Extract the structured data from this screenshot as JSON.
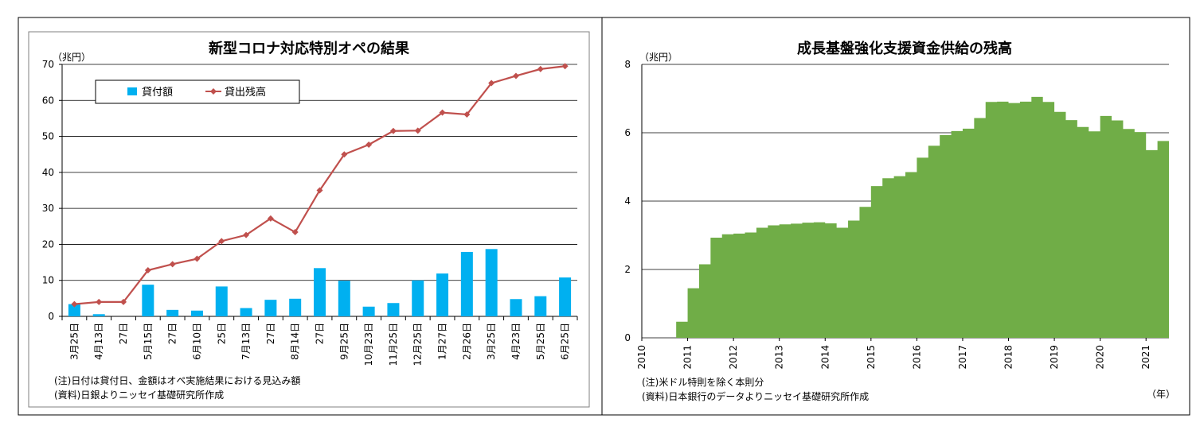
{
  "left": {
    "title": "新型コロナ対応特別オペの結果",
    "unit": "（兆円）",
    "note": "(注)日付は貸付日、金額はオペ実施結果における見込み額",
    "source": "(資料)日銀よりニッセイ基礎研究所作成"
  },
  "right": {
    "title": "成長基盤強化支援資金供給の残高",
    "unit": "（兆円）",
    "year_unit": "（年）",
    "note": "(注)米ドル特則を除く本則分",
    "source": "(資料)日本銀行のデータよりニッセイ基礎研究所作成"
  },
  "chart_data": [
    {
      "type": "bar+line",
      "title": "新型コロナ対応特別オペの結果",
      "ylabel": "（兆円）",
      "ylim": [
        0,
        70
      ],
      "yticks": [
        0,
        10,
        20,
        30,
        40,
        50,
        60,
        70
      ],
      "grid": true,
      "legend_position": "top-left",
      "categories": [
        "3月25日",
        "4月13日",
        "27日",
        "5月15日",
        "27日",
        "6月10日",
        "25日",
        "7月13日",
        "27日",
        "8月14日",
        "27日",
        "9月25日",
        "10月23日",
        "11月25日",
        "12月25日",
        "1月27日",
        "2月26日",
        "3月25日",
        "4月23日",
        "5月25日",
        "6月25日"
      ],
      "series": [
        {
          "name": "貸付額",
          "type": "bar",
          "color": "#00B0F0",
          "values": [
            3.4,
            0.6,
            0,
            8.8,
            1.8,
            1.6,
            8.3,
            2.3,
            4.6,
            4.9,
            13.4,
            9.9,
            2.7,
            3.7,
            10,
            11.9,
            17.9,
            18.7,
            4.8,
            5.6,
            10.8
          ]
        },
        {
          "name": "貸出残高",
          "type": "line",
          "color": "#C0504D",
          "values": [
            3.4,
            4.0,
            4.0,
            12.8,
            14.5,
            16.0,
            20.9,
            22.6,
            27.2,
            23.4,
            35.0,
            45.0,
            47.7,
            51.5,
            51.6,
            56.6,
            56.1,
            64.8,
            66.8,
            68.7,
            69.5
          ]
        }
      ]
    },
    {
      "type": "area",
      "title": "成長基盤強化支援資金供給の残高",
      "ylabel": "（兆円）",
      "xlabel": "（年）",
      "ylim": [
        0,
        8
      ],
      "yticks": [
        0,
        2,
        4,
        6,
        8
      ],
      "xticks": [
        "2010",
        "2011",
        "2012",
        "2013",
        "2014",
        "2015",
        "2016",
        "2017",
        "2018",
        "2019",
        "2020",
        "2021"
      ],
      "grid": true,
      "color": "#70AD47",
      "x_start": "2010-01",
      "x_step": "quarter",
      "values": [
        0,
        0,
        0,
        0.47,
        1.45,
        2.15,
        2.93,
        3.03,
        3.05,
        3.08,
        3.22,
        3.29,
        3.32,
        3.34,
        3.37,
        3.38,
        3.35,
        3.22,
        3.43,
        3.83,
        4.44,
        4.67,
        4.73,
        4.85,
        5.27,
        5.62,
        5.93,
        6.05,
        6.12,
        6.43,
        6.9,
        6.91,
        6.87,
        6.91,
        7.05,
        6.9,
        6.61,
        6.37,
        6.17,
        6.04,
        6.49,
        6.36,
        6.11,
        6.02,
        5.49,
        5.76
      ]
    }
  ]
}
